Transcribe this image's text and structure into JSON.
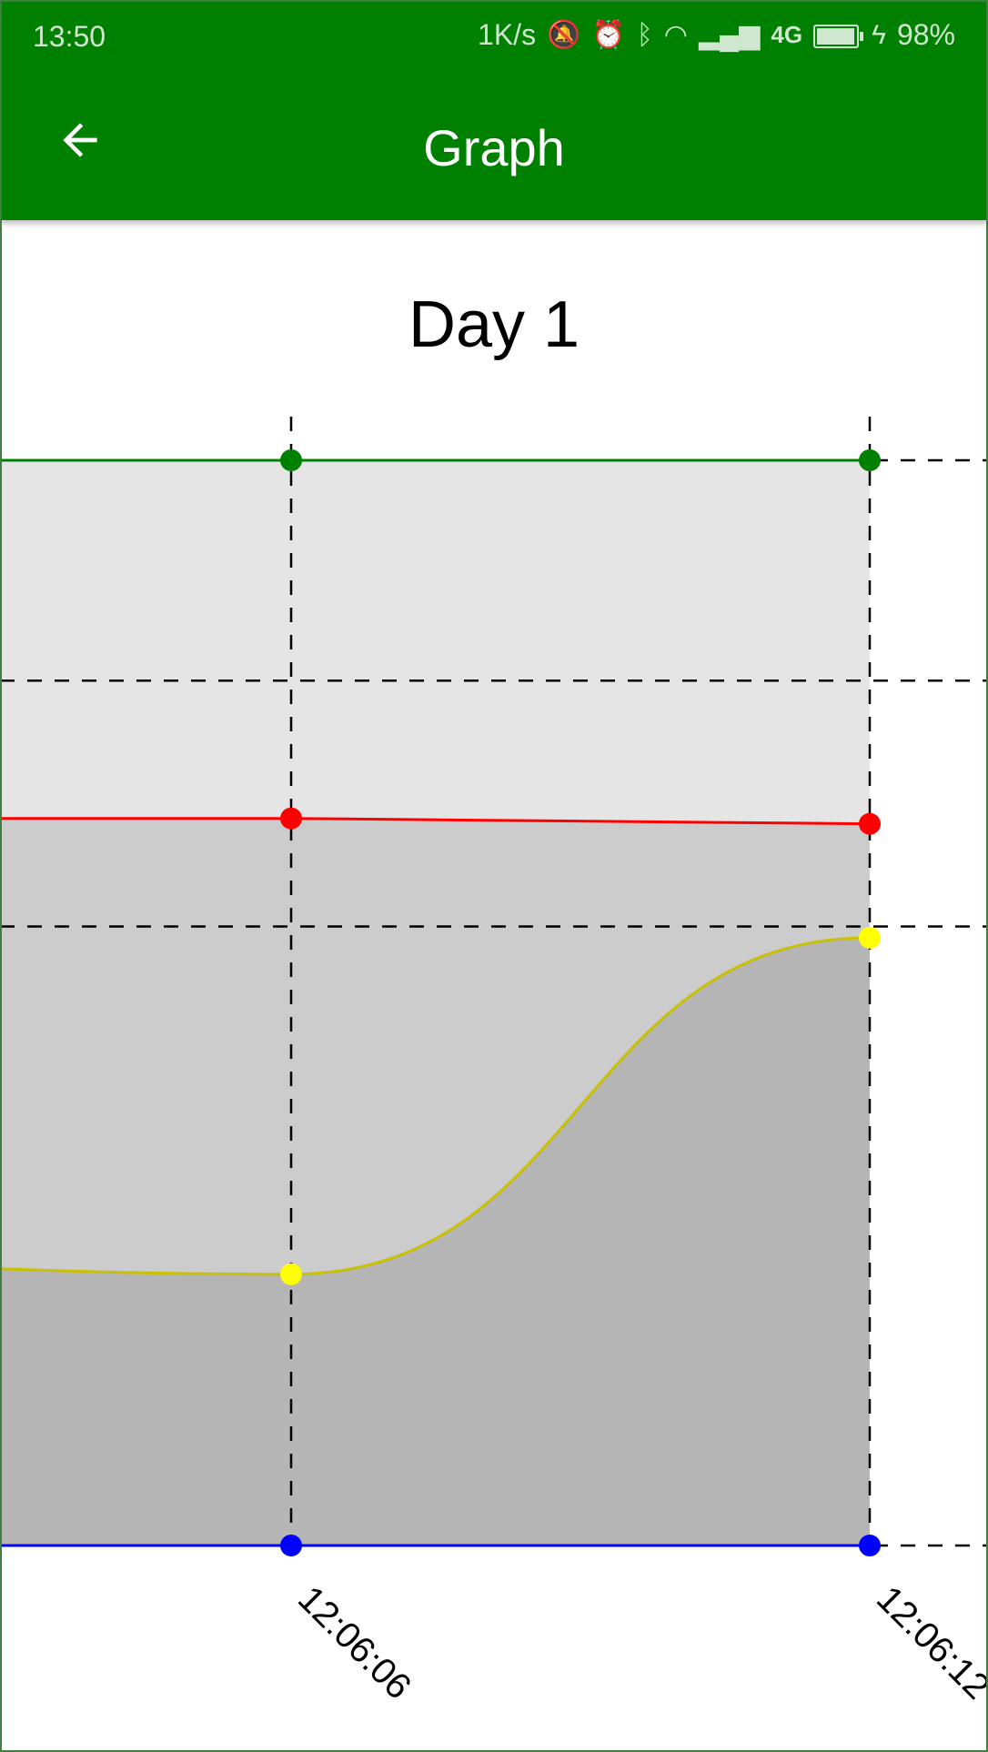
{
  "status_bar": {
    "time": "13:50",
    "network_speed": "1K/s",
    "network_type": "4G",
    "battery_percent": "98%",
    "battery_level": 0.98,
    "icons": [
      "muted-bell-icon",
      "alarm-icon",
      "bluetooth-icon",
      "wifi-icon",
      "signal-icon",
      "battery-icon",
      "charging-icon"
    ]
  },
  "app_bar": {
    "back_icon": "arrow-left-icon",
    "title": "Graph",
    "color": "#008000"
  },
  "chart_data": {
    "type": "area",
    "title": "Day 1",
    "x": [
      "12:06:06",
      "12:06:12"
    ],
    "grid": true,
    "grid_style": "dashed",
    "series": [
      {
        "color": "#008000",
        "fill": "#e5e5e5",
        "values": [
          1.0,
          1.0
        ]
      },
      {
        "color": "#ff0000",
        "fill": "#cccccc",
        "values": [
          0.67,
          0.665
        ]
      },
      {
        "color": "#ffff00",
        "line_color": "#c8c000",
        "fill": "#b5b5b5",
        "values": [
          0.25,
          0.56
        ]
      },
      {
        "color": "#0000ff",
        "fill": "#b5b5b5",
        "values": [
          0.0,
          0.0
        ]
      }
    ],
    "ylim": [
      0,
      1
    ]
  }
}
